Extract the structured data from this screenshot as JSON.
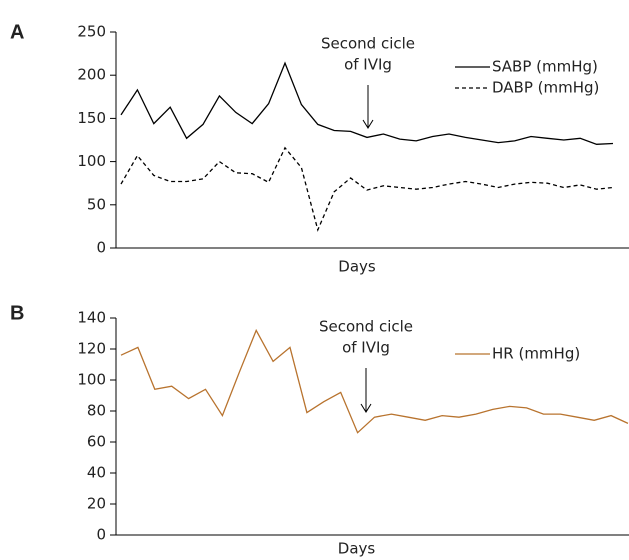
{
  "chart_data": [
    {
      "type": "line",
      "panel": "A",
      "x_label": "Days",
      "annotation": [
        "Second cicle",
        "of IVIg"
      ],
      "categories": [
        null,
        null,
        null,
        null,
        null,
        null,
        null,
        null,
        null,
        null,
        null,
        null,
        null,
        null,
        null,
        null,
        null,
        null,
        null,
        null,
        null,
        null,
        null,
        null,
        null,
        null,
        null,
        null,
        null,
        null,
        null
      ],
      "ylim": [
        0,
        250
      ],
      "yticks": [
        0,
        50,
        100,
        150,
        200,
        250
      ],
      "series": [
        {
          "name": "SABP (mmHg)",
          "color": "#000000",
          "dash": "none",
          "values": [
            154,
            183,
            144,
            163,
            127,
            143,
            176,
            157,
            144,
            167,
            214,
            166,
            143,
            136,
            135,
            128,
            132,
            126,
            124,
            129,
            132,
            128,
            125,
            122,
            124,
            129,
            127,
            125,
            127,
            120,
            121
          ]
        },
        {
          "name": "DABP (mmHg)",
          "color": "#000000",
          "dash": "4,3",
          "values": [
            74,
            107,
            84,
            77,
            77,
            80,
            100,
            87,
            86,
            76,
            116,
            93,
            21,
            65,
            81,
            67,
            72,
            70,
            68,
            70,
            74,
            77,
            74,
            70,
            74,
            76,
            75,
            70,
            73,
            68,
            70
          ]
        }
      ]
    },
    {
      "type": "line",
      "panel": "B",
      "x_label": "Days",
      "annotation": [
        "Second cicle",
        "of IVIg"
      ],
      "categories": [
        null,
        null,
        null,
        null,
        null,
        null,
        null,
        null,
        null,
        null,
        null,
        null,
        null,
        null,
        null,
        null,
        null,
        null,
        null,
        null,
        null,
        null,
        null,
        null,
        null,
        null,
        null,
        null,
        null,
        null,
        null
      ],
      "ylim": [
        0,
        140
      ],
      "yticks": [
        0,
        20,
        40,
        60,
        80,
        100,
        120,
        140
      ],
      "series": [
        {
          "name": "HR (mmHg)",
          "color": "#b8732e",
          "dash": "none",
          "values": [
            116,
            121,
            94,
            96,
            88,
            94,
            77,
            105,
            132,
            112,
            121,
            79,
            86,
            92,
            66,
            76,
            78,
            76,
            74,
            77,
            76,
            78,
            81,
            83,
            82,
            78,
            78,
            76,
            74,
            77,
            72
          ]
        }
      ]
    }
  ]
}
